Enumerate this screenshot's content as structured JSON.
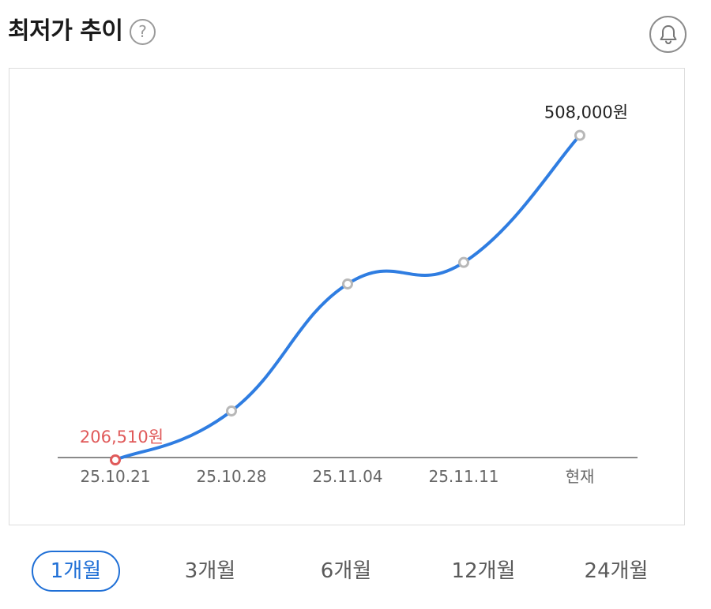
{
  "header": {
    "title": "최저가 추이",
    "help_icon": "question-circle-icon",
    "alarm_icon": "bell-icon"
  },
  "chart_data": {
    "type": "line",
    "title": "",
    "xlabel": "",
    "ylabel": "",
    "categories": [
      "25.10.21",
      "25.10.28",
      "25.11.04",
      "25.11.11",
      "현재"
    ],
    "series": [
      {
        "values": [
          206510,
          252000,
          370000,
          390000,
          508000
        ],
        "color": "#2f7de1"
      }
    ],
    "ylim": [
      145000,
      570000
    ],
    "grid": false,
    "legend": "none",
    "annotations": [
      {
        "index": 0,
        "text": "206,510원",
        "color": "#e05a5a"
      },
      {
        "index": 4,
        "text": "508,000원",
        "color": "#222222"
      }
    ],
    "min_marker_color": "#e05a5a",
    "point_marker_color": "#b8b8b8",
    "axis_color": "#8a8a8a",
    "tick_label_color": "#666666"
  },
  "period_tabs": [
    {
      "label": "1개월",
      "active": true
    },
    {
      "label": "3개월",
      "active": false
    },
    {
      "label": "6개월",
      "active": false
    },
    {
      "label": "12개월",
      "active": false
    },
    {
      "label": "24개월",
      "active": false
    }
  ],
  "accent_color": "#1f6fd6"
}
